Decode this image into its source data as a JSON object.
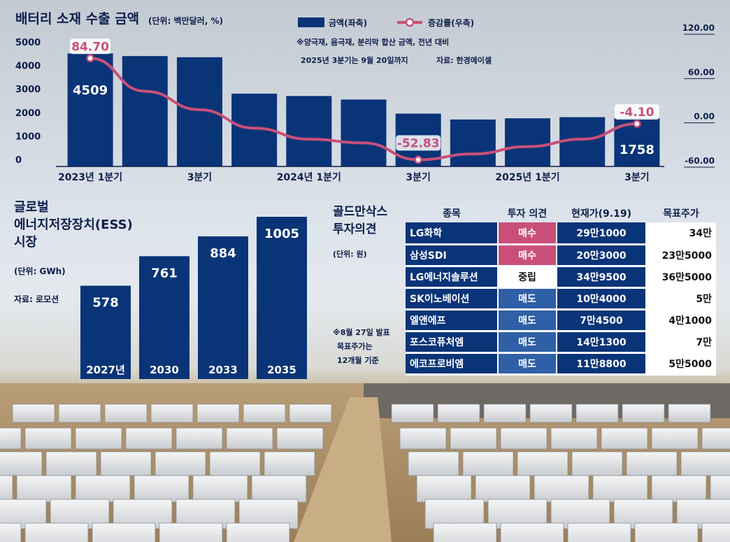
{
  "export_chart": {
    "title": "배터리 소재 수출 금액",
    "unit": "(단위: 백만달러, %)",
    "legend_bar": "금액(좌축)",
    "legend_line": "증감률(우축)",
    "note1": "※양극재, 음극재, 분리막 합산 금액, 전년 대비",
    "note2": "2025년 3분기는 9월 20일까지",
    "source": "자료: 한경에이셀",
    "left_ticks": [
      "5000",
      "4000",
      "3000",
      "2000",
      "1000",
      "0"
    ],
    "right_ticks": [
      "120.00",
      "60.00",
      "0.00",
      "-60.00"
    ],
    "x_labels": [
      {
        "label": "2023년 1분기",
        "index": 0
      },
      {
        "label": "3분기",
        "index": 2
      },
      {
        "label": "2024년 1분기",
        "index": 4
      },
      {
        "label": "3분기",
        "index": 6
      },
      {
        "label": "2025년 1분기",
        "index": 8
      },
      {
        "label": "3분기",
        "index": 10
      }
    ]
  },
  "ess_chart": {
    "title_lines": [
      "글로벌",
      "에너지저장장치(ESS)",
      "시장"
    ],
    "unit": "(단위: GWh)",
    "source": "자료: 로모션"
  },
  "goldman": {
    "title_lines": [
      "골드만삭스",
      "투자의견"
    ],
    "unit": "(단위: 원)",
    "note_lines": [
      "※8월 27일 발표",
      "목표주가는",
      "12개월 기준"
    ],
    "headers": [
      "종목",
      "투자 의견",
      "현재가(9.19)",
      "목표주가"
    ],
    "rows": [
      {
        "name": "LG화학",
        "opinion": "매수",
        "op_class": "op-buy",
        "current": "29만1000",
        "target": "34만"
      },
      {
        "name": "삼성SDI",
        "opinion": "매수",
        "op_class": "op-buy",
        "current": "20만3000",
        "target": "23만5000"
      },
      {
        "name": "LG에너지솔루션",
        "opinion": "중립",
        "op_class": "op-neutral",
        "current": "34만9500",
        "target": "36만5000"
      },
      {
        "name": "SK이노베이션",
        "opinion": "매도",
        "op_class": "op-sell",
        "current": "10만4000",
        "target": "5만"
      },
      {
        "name": "엘앤에프",
        "opinion": "매도",
        "op_class": "op-sell",
        "current": "7만4500",
        "target": "4만1000"
      },
      {
        "name": "포스코퓨처엠",
        "opinion": "매도",
        "op_class": "op-sell",
        "current": "14만1300",
        "target": "7만"
      },
      {
        "name": "에코프로비엠",
        "opinion": "매도",
        "op_class": "op-sell",
        "current": "11만8800",
        "target": "5만5000"
      }
    ]
  },
  "colors": {
    "bar": "#0a3478",
    "line": "#c94f7a",
    "ink": "#0d1f4c"
  },
  "chart_data": [
    {
      "type": "bar",
      "title": "배터리 소재 수출 금액",
      "unit": "백만달러, %",
      "categories": [
        "2023년 1분기",
        "2023년 2분기",
        "2023년 3분기",
        "2023년 4분기",
        "2024년 1분기",
        "2024년 2분기",
        "2024년 3분기",
        "2024년 4분기",
        "2025년 1분기",
        "2025년 2분기",
        "2025년 3분기"
      ],
      "series": [
        {
          "name": "금액(좌축)",
          "type": "bar",
          "axis": "left",
          "values": [
            4509,
            4400,
            4350,
            2800,
            2700,
            2550,
            1950,
            1700,
            1750,
            1800,
            1758
          ]
        },
        {
          "name": "증감률(우축)",
          "type": "line",
          "axis": "right",
          "values": [
            84.7,
            40,
            15,
            -10,
            -25,
            -30,
            -52.83,
            -45,
            -35,
            -25,
            -4.1
          ]
        }
      ],
      "data_labels": {
        "bar": {
          "0": "4509",
          "10": "1758"
        },
        "line": {
          "0": "84.70",
          "6": "-52.83",
          "10": "-4.10"
        }
      },
      "ylim_left": [
        0,
        5000
      ],
      "ylim_right": [
        -60,
        120
      ]
    },
    {
      "type": "bar",
      "title": "글로벌 에너지저장장치(ESS) 시장",
      "unit": "GWh",
      "categories": [
        "2027년",
        "2030",
        "2033",
        "2035"
      ],
      "values": [
        578,
        761,
        884,
        1005
      ]
    }
  ]
}
